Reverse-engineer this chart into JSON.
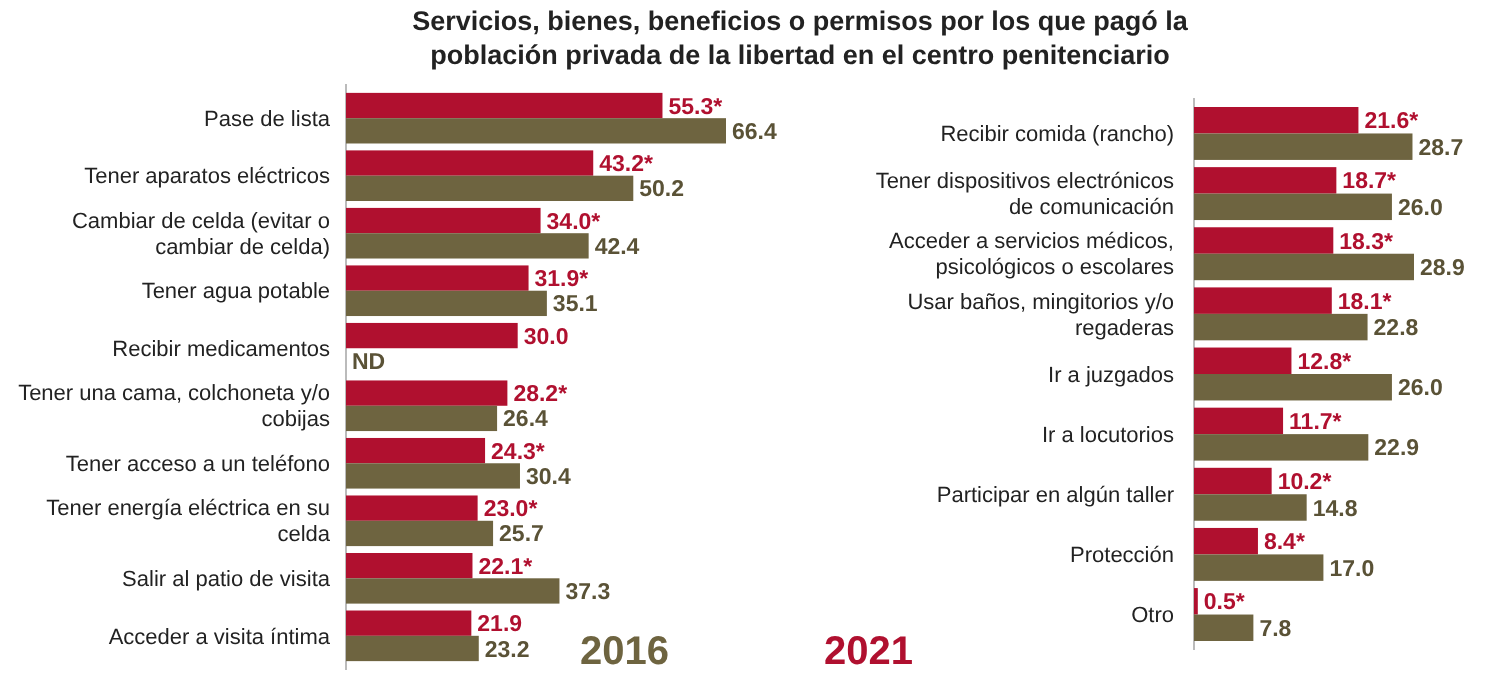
{
  "chart_data": [
    {
      "type": "bar",
      "orientation": "horizontal",
      "title": "Servicios, bienes, beneficios o permisos por los que pagó la población privada de la libertad en el centro penitenciario",
      "legend": "bottom right",
      "data_labels": true,
      "categories": [
        "Pase de lista",
        "Tener aparatos eléctricos",
        "Cambiar de celda (evitar o cambiar de celda)",
        "Tener agua potable",
        "Recibir medicamentos",
        "Tener una cama, colchoneta y/o cobijas",
        "Tener acceso a un teléfono",
        "Tener energía eléctrica en su celda",
        "Salir al patio de visita",
        "Acceder a visita íntima"
      ],
      "series": [
        {
          "color": "#b0102f",
          "values": [
            55.3,
            43.2,
            34.0,
            31.9,
            30.0,
            28.2,
            24.3,
            23.0,
            22.1,
            21.9
          ],
          "value_labels": [
            "55.3*",
            "43.2*",
            "34.0*",
            "31.9*",
            "30.0",
            "28.2*",
            "24.3*",
            "23.0*",
            "22.1*",
            "21.9"
          ]
        },
        {
          "name": "2016",
          "color": "#6e6440",
          "values": [
            66.4,
            50.2,
            42.4,
            35.1,
            null,
            26.4,
            30.4,
            25.7,
            37.3,
            23.2
          ],
          "value_labels": [
            "66.4",
            "50.2",
            "42.4",
            "35.1",
            "ND",
            "26.4",
            "30.4",
            "25.7",
            "37.3",
            "23.2"
          ]
        }
      ]
    },
    {
      "type": "bar",
      "orientation": "horizontal",
      "legend": "bottom left",
      "data_labels": true,
      "categories": [
        "Recibir comida (rancho)",
        "Tener dispositivos electrónicos de comunicación",
        "Acceder a servicios médicos, psicológicos o escolares",
        "Usar baños, mingitorios y/o regaderas",
        "Ir a juzgados",
        "Ir a locutorios",
        "Participar en algún taller",
        "Protección",
        "Otro"
      ],
      "series": [
        {
          "name": "2021",
          "color": "#b0102f",
          "values": [
            21.6,
            18.7,
            18.3,
            18.1,
            12.8,
            11.7,
            10.2,
            8.4,
            0.5
          ],
          "value_labels": [
            "21.6*",
            "18.7*",
            "18.3*",
            "18.1*",
            "12.8*",
            "11.7*",
            "10.2*",
            "8.4*",
            "0.5*"
          ]
        },
        {
          "color": "#6e6440",
          "values": [
            28.7,
            26.0,
            28.9,
            22.8,
            26.0,
            22.9,
            14.8,
            17.0,
            7.8
          ],
          "value_labels": [
            "28.7",
            "26.0",
            "28.9",
            "22.8",
            "26.0",
            "22.9",
            "14.8",
            "17.0",
            "7.8"
          ]
        }
      ]
    }
  ]
}
